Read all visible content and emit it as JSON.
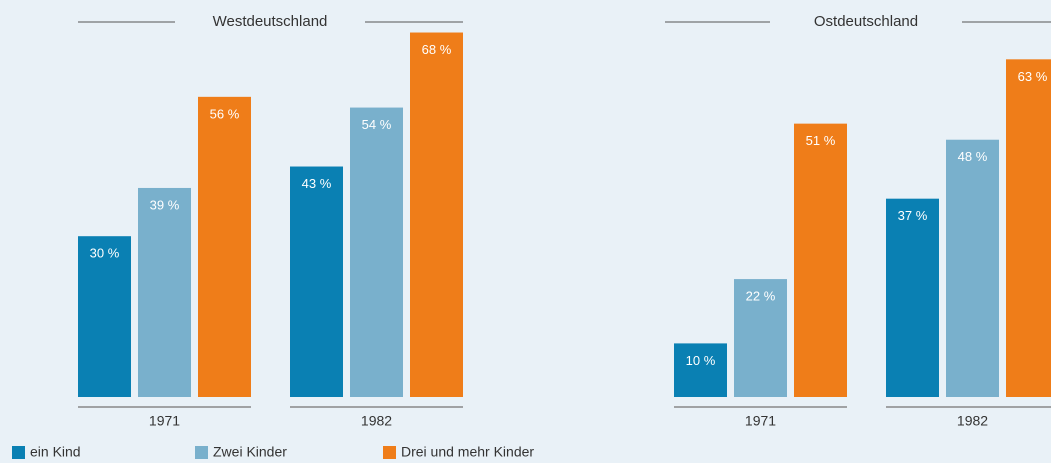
{
  "chart_data": [
    {
      "type": "bar",
      "title": "Westdeutschland",
      "categories": [
        "1971",
        "1982"
      ],
      "series": [
        {
          "name": "ein Kind",
          "color": "#0a80b3",
          "values": [
            30,
            43
          ],
          "value_labels": [
            "30 %",
            "43 %"
          ]
        },
        {
          "name": "Zwei Kinder",
          "color": "#79b0cc",
          "values": [
            39,
            54
          ],
          "value_labels": [
            "39 %",
            "54 %"
          ]
        },
        {
          "name": "Drei und mehr Kinder",
          "color": "#ef7d19",
          "values": [
            56,
            68
          ],
          "value_labels": [
            "56 %",
            "68 %"
          ]
        }
      ]
    },
    {
      "type": "bar",
      "title": "Ostdeutschland",
      "categories": [
        "1971",
        "1982"
      ],
      "series": [
        {
          "color": "#0a80b3",
          "values": [
            10,
            37
          ],
          "value_labels": [
            "10 %",
            "37 %"
          ]
        },
        {
          "color": "#79b0cc",
          "values": [
            22,
            48
          ],
          "value_labels": [
            "22 %",
            "48 %"
          ]
        },
        {
          "color": "#ef7d19",
          "values": [
            51,
            63
          ],
          "value_labels": [
            "51 %",
            "63 %"
          ]
        }
      ]
    }
  ]
}
